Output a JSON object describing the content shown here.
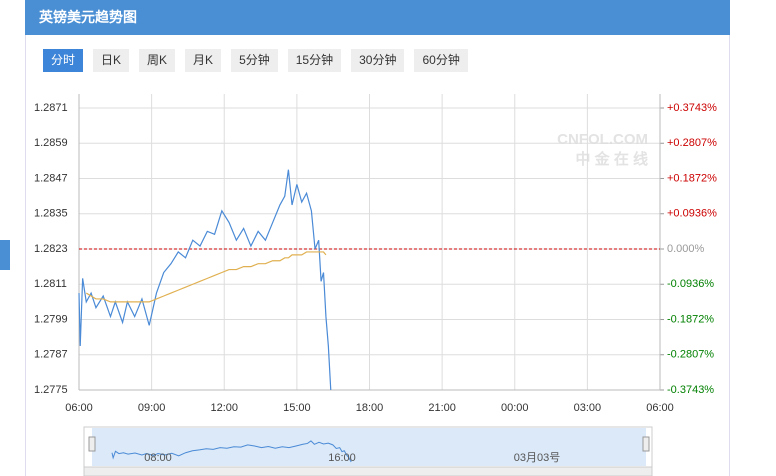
{
  "header": {
    "title": "英镑美元趋势图"
  },
  "tabs": [
    "分时",
    "日K",
    "周K",
    "月K",
    "5分钟",
    "15分钟",
    "30分钟",
    "60分钟"
  ],
  "active_tab": 0,
  "watermark": [
    "CNFOL.COM",
    "中 金 在 线"
  ],
  "chart_data": {
    "type": "line",
    "x": [
      6.0,
      6.05,
      6.15,
      6.3,
      6.5,
      6.7,
      7.0,
      7.3,
      7.5,
      7.8,
      8.0,
      8.3,
      8.6,
      8.9,
      9.2,
      9.5,
      9.8,
      10.1,
      10.4,
      10.7,
      11.0,
      11.3,
      11.6,
      11.9,
      12.2,
      12.5,
      12.8,
      13.1,
      13.4,
      13.7,
      14.0,
      14.3,
      14.5,
      14.65,
      14.8,
      15.0,
      15.2,
      15.4,
      15.6,
      15.75,
      15.9,
      16.0,
      16.1,
      16.2,
      16.3,
      16.4
    ],
    "series": [
      {
        "name": "price",
        "color": "#4a8ad6",
        "values": [
          1.2808,
          1.279,
          1.2813,
          1.2805,
          1.2808,
          1.2803,
          1.2807,
          1.28,
          1.2805,
          1.2798,
          1.2805,
          1.28,
          1.2806,
          1.2797,
          1.2808,
          1.2815,
          1.2818,
          1.2822,
          1.282,
          1.2826,
          1.2824,
          1.2829,
          1.2828,
          1.2836,
          1.2832,
          1.2826,
          1.283,
          1.2824,
          1.2829,
          1.2826,
          1.2832,
          1.2838,
          1.2841,
          1.285,
          1.2838,
          1.2845,
          1.2839,
          1.2842,
          1.2836,
          1.2823,
          1.2826,
          1.2812,
          1.2815,
          1.28,
          1.279,
          1.2775
        ]
      },
      {
        "name": "average",
        "color": "#e0b050",
        "values": [
          null,
          null,
          null,
          1.2808,
          1.2807,
          1.2806,
          1.2806,
          1.2805,
          1.2805,
          1.2805,
          1.2805,
          1.2805,
          1.2805,
          1.2805,
          1.2806,
          1.2807,
          1.2808,
          1.2809,
          1.281,
          1.2811,
          1.2812,
          1.2813,
          1.2814,
          1.2815,
          1.2816,
          1.2816,
          1.2817,
          1.2817,
          1.2818,
          1.2818,
          1.2819,
          1.2819,
          1.282,
          1.282,
          1.2821,
          1.2821,
          1.2821,
          1.2822,
          1.2822,
          1.2822,
          1.2822,
          1.2822,
          1.2822,
          1.2821,
          null,
          null
        ]
      }
    ],
    "xlim": [
      6,
      30
    ],
    "xticks": [
      {
        "value": 6,
        "label": "06:00"
      },
      {
        "value": 9,
        "label": "09:00"
      },
      {
        "value": 12,
        "label": "12:00"
      },
      {
        "value": 15,
        "label": "15:00"
      },
      {
        "value": 18,
        "label": "18:00"
      },
      {
        "value": 21,
        "label": "21:00"
      },
      {
        "value": 24,
        "label": "00:00"
      },
      {
        "value": 27,
        "label": "03:00"
      },
      {
        "value": 30,
        "label": "06:00"
      }
    ],
    "ylim": [
      1.2775,
      1.2871
    ],
    "yticks": [
      1.2871,
      1.2859,
      1.2847,
      1.2835,
      1.2823,
      1.2811,
      1.2799,
      1.2787,
      1.2775
    ],
    "y2lim": [
      -0.3743,
      0.3743
    ],
    "y2ticks": [
      {
        "value": 0.3743,
        "label": "+0.3743%"
      },
      {
        "value": 0.2807,
        "label": "+0.2807%"
      },
      {
        "value": 0.1872,
        "label": "+0.1872%"
      },
      {
        "value": 0.0936,
        "label": "+0.0936%"
      },
      {
        "value": 0,
        "label": "0.000%"
      },
      {
        "value": -0.0936,
        "label": "-0.0936%"
      },
      {
        "value": -0.1872,
        "label": "-0.1872%"
      },
      {
        "value": -0.2807,
        "label": "-0.2807%"
      },
      {
        "value": -0.3743,
        "label": "-0.3743%"
      }
    ],
    "y2_colors": {
      "positive": "#cc0000",
      "zero": "#999999",
      "negative": "#008000"
    },
    "baseline": 1.2823,
    "baseline_color": "#cc0000",
    "grid": true,
    "navigator": {
      "labels": [
        "08:00",
        "16:00",
        "03月03号"
      ]
    }
  }
}
